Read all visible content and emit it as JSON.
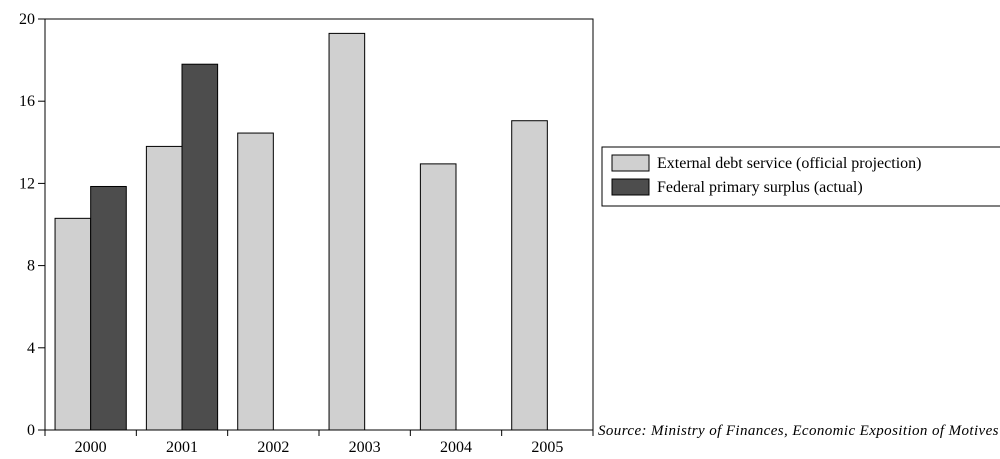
{
  "chart_data": {
    "type": "bar",
    "categories": [
      "2000",
      "2001",
      "2002",
      "2003",
      "2004",
      "2005"
    ],
    "series": [
      {
        "name": "External debt service (official projection)",
        "color": "#d0d0d0",
        "values": [
          10.3,
          13.8,
          14.45,
          19.3,
          12.95,
          15.05
        ]
      },
      {
        "name": "Federal primary surplus (actual)",
        "color": "#4d4d4d",
        "values": [
          11.85,
          17.8,
          null,
          null,
          null,
          null
        ]
      }
    ],
    "ylim": [
      0,
      20
    ],
    "yticks": [
      "0",
      "4",
      "8",
      "12",
      "16",
      "20"
    ],
    "xlabel": "",
    "ylabel": "",
    "grid": false,
    "legend_position": "right",
    "source": "Source: Ministry of Finances, Economic Exposition of Motives - Budget Law."
  }
}
